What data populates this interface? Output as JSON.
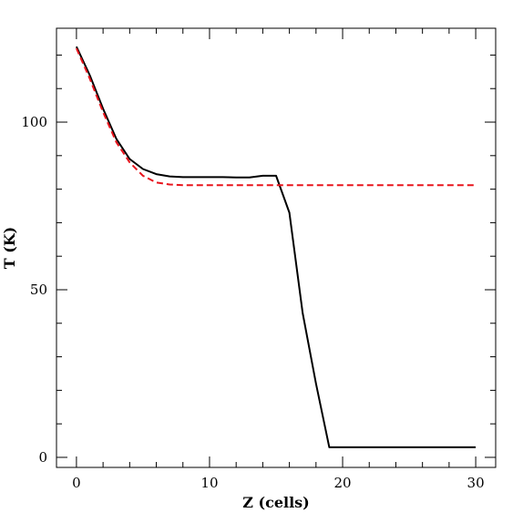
{
  "chart_data": {
    "type": "line",
    "xlabel": "Z (cells)",
    "ylabel": "T (K)",
    "xlim": [
      -1.5,
      31.5
    ],
    "ylim": [
      -3,
      128
    ],
    "x_ticks": [
      0,
      10,
      20,
      30
    ],
    "y_ticks": [
      0,
      50,
      100
    ],
    "grid": false,
    "series": [
      {
        "color": "#000000",
        "style": "solid",
        "points": [
          [
            0,
            122.5
          ],
          [
            1,
            114
          ],
          [
            2,
            104
          ],
          [
            3,
            95
          ],
          [
            4,
            89
          ],
          [
            5,
            86
          ],
          [
            6,
            84.5
          ],
          [
            7,
            83.8
          ],
          [
            8,
            83.6
          ],
          [
            9,
            83.6
          ],
          [
            10,
            83.6
          ],
          [
            11,
            83.6
          ],
          [
            12,
            83.5
          ],
          [
            13,
            83.5
          ],
          [
            14,
            84
          ],
          [
            15,
            84
          ],
          [
            16,
            73
          ],
          [
            17,
            43
          ],
          [
            18,
            22
          ],
          [
            19,
            3
          ],
          [
            20,
            3
          ],
          [
            25,
            3
          ],
          [
            30,
            3
          ]
        ]
      },
      {
        "color": "#e8141c",
        "style": "dashed",
        "points": [
          [
            0,
            122
          ],
          [
            1,
            113
          ],
          [
            2,
            103
          ],
          [
            3,
            94
          ],
          [
            4,
            88
          ],
          [
            5,
            84
          ],
          [
            6,
            82
          ],
          [
            7,
            81.4
          ],
          [
            8,
            81.2
          ],
          [
            10,
            81.2
          ],
          [
            15,
            81.2
          ],
          [
            20,
            81.2
          ],
          [
            25,
            81.2
          ],
          [
            30,
            81.2
          ]
        ]
      }
    ]
  }
}
